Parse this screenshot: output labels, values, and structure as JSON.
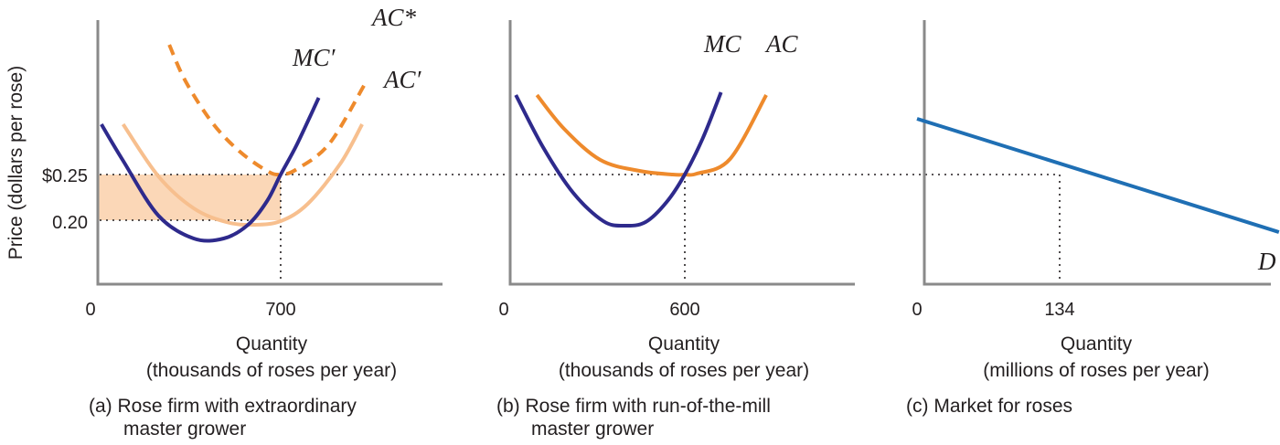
{
  "y_axis_label": "Price (dollars per rose)",
  "colors": {
    "mc": "#2e2a8c",
    "ac": "#ee8a2c",
    "ac_prime": "#f7bf8e",
    "demand": "#1f6fb4",
    "shade": "#fbd7b7",
    "axis": "#8a8a8a",
    "guide": "#231f20"
  },
  "chart_data": [
    {
      "id": "a",
      "type": "line",
      "caption_line1": "(a) Rose firm with extraordinary",
      "caption_line2": "master grower",
      "xlabel_line1": "Quantity",
      "xlabel_line2": "(thousands of roses per year)",
      "x_ticks": [
        "0",
        "700"
      ],
      "y_ticks": [
        "$0.25",
        "0.20"
      ],
      "grid": false,
      "shaded_region": {
        "y_from": 0.2,
        "y_to": 0.25,
        "x_from": 0,
        "x_to": 700,
        "meaning": "area between price $0.25 and minimum of AC'"
      },
      "series": [
        {
          "name": "MC′",
          "style": "solid",
          "color_key": "mc",
          "x": [
            40,
            120,
            250,
            380,
            490,
            580,
            650,
            700,
            760,
            840
          ],
          "y": [
            0.305,
            0.265,
            0.205,
            0.18,
            0.18,
            0.195,
            0.221,
            0.25,
            0.283,
            0.334
          ]
        },
        {
          "name": "AC*",
          "style": "dashed",
          "color_key": "ac",
          "x": [
            290,
            350,
            450,
            550,
            650,
            700,
            760,
            880,
            1010
          ],
          "y": [
            0.392,
            0.352,
            0.306,
            0.275,
            0.254,
            0.25,
            0.256,
            0.284,
            0.349
          ]
        },
        {
          "name": "AC′",
          "style": "solid",
          "color_key": "ac_prime",
          "x": [
            120,
            250,
            380,
            500,
            600,
            700,
            800,
            920,
            1000
          ],
          "y": [
            0.305,
            0.248,
            0.213,
            0.198,
            0.195,
            0.199,
            0.218,
            0.262,
            0.305
          ]
        }
      ],
      "markers": [
        {
          "x": 700,
          "y": 0.25
        }
      ]
    },
    {
      "id": "b",
      "type": "line",
      "caption_line1": "(b) Rose firm with run-of-the-mill",
      "caption_line2": "master grower",
      "xlabel_line1": "Quantity",
      "xlabel_line2": "(thousands of roses per year)",
      "x_ticks": [
        "0",
        "600"
      ],
      "y_ticks": [],
      "grid": false,
      "series": [
        {
          "name": "MC",
          "style": "solid",
          "color_key": "mc",
          "x": [
            40,
            130,
            230,
            330,
            400,
            470,
            540,
            600,
            660,
            720
          ],
          "y": [
            0.337,
            0.28,
            0.23,
            0.199,
            0.194,
            0.198,
            0.22,
            0.25,
            0.29,
            0.34
          ]
        },
        {
          "name": "AC",
          "style": "solid",
          "color_key": "ac",
          "x": [
            110,
            200,
            320,
            450,
            560,
            600,
            640,
            750,
            870
          ],
          "y": [
            0.337,
            0.3,
            0.266,
            0.254,
            0.25,
            0.25,
            0.251,
            0.267,
            0.337
          ]
        }
      ],
      "markers": [
        {
          "x": 600,
          "y": 0.25
        }
      ]
    },
    {
      "id": "c",
      "type": "line",
      "caption_line1": "(c) Market for roses",
      "caption_line2": "",
      "xlabel_line1": "Quantity",
      "xlabel_line2": "(millions of roses per year)",
      "x_ticks": [
        "0",
        "134"
      ],
      "y_ticks": [],
      "grid": false,
      "series": [
        {
          "name": "D",
          "style": "solid",
          "color_key": "demand",
          "x": [
            0,
            340
          ],
          "y": [
            0.311,
            0.187
          ]
        }
      ],
      "markers": [
        {
          "x": 134,
          "y": 0.25
        }
      ]
    }
  ]
}
